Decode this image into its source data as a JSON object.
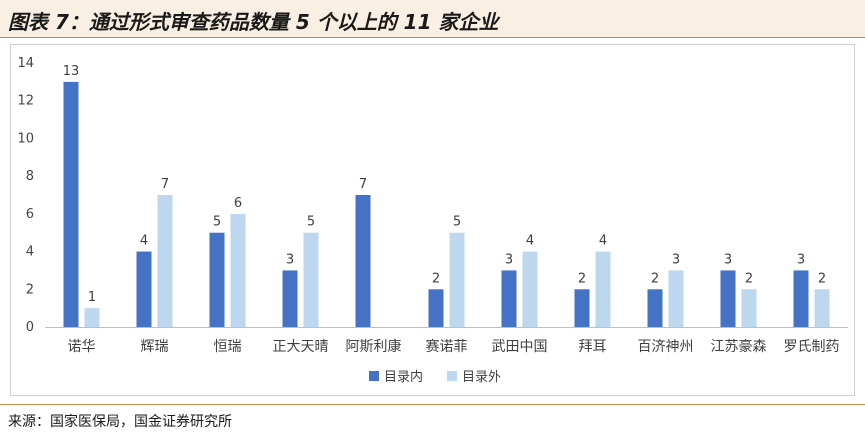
{
  "title": "图表 7：通过形式审查药品数量 5 个以上的 11 家企业",
  "source": "来源：国家医保局，国金证券研究所",
  "colors": {
    "series_in": "#4472c4",
    "series_out": "#bdd7ee"
  },
  "chart_data": {
    "type": "bar",
    "categories": [
      "诺华",
      "辉瑞",
      "恒瑞",
      "正大天晴",
      "阿斯利康",
      "赛诺菲",
      "武田中国",
      "拜耳",
      "百济神州",
      "江苏豪森",
      "罗氏制药"
    ],
    "series": [
      {
        "name": "目录内",
        "values": [
          13,
          4,
          5,
          3,
          7,
          2,
          3,
          2,
          2,
          3,
          3
        ]
      },
      {
        "name": "目录外",
        "values": [
          1,
          7,
          6,
          5,
          0,
          5,
          4,
          4,
          3,
          2,
          2
        ]
      }
    ],
    "y_ticks": [
      0,
      2,
      4,
      6,
      8,
      10,
      12,
      14
    ],
    "ylim": [
      0,
      14
    ],
    "legend_position": "bottom",
    "grid": false,
    "data_labels": true
  }
}
